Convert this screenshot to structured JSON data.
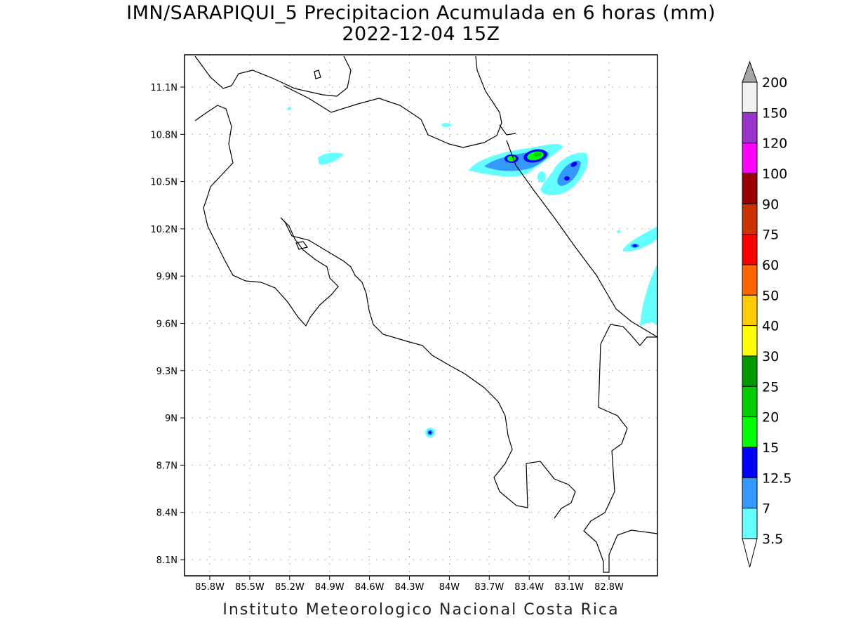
{
  "title": {
    "line1": "IMN/SARAPIQUI_5 Precipitacion Acumulada en 6 horas (mm)",
    "line2": "2022-12-04 15Z"
  },
  "footer": "Instituto Meteorologico Nacional Costa Rica",
  "map": {
    "lon_ticks": [
      "85.8W",
      "85.5W",
      "85.2W",
      "84.9W",
      "84.6W",
      "84.3W",
      "84W",
      "83.7W",
      "83.4W",
      "83.1W",
      "82.8W"
    ],
    "lat_ticks": [
      "11.1N",
      "10.8N",
      "10.5N",
      "10.2N",
      "9.9N",
      "9.6N",
      "9.3N",
      "9N",
      "8.7N",
      "8.4N",
      "8.1N"
    ]
  },
  "colorbar": {
    "labels": [
      "200",
      "150",
      "120",
      "100",
      "90",
      "75",
      "60",
      "50",
      "40",
      "30",
      "25",
      "20",
      "15",
      "12.5",
      "7",
      "3.5"
    ],
    "colors": [
      "#f2f2f2",
      "#9933cc",
      "#ff00ff",
      "#990000",
      "#cc3300",
      "#ff0000",
      "#ff6600",
      "#ffcc00",
      "#ffff00",
      "#009900",
      "#00cc00",
      "#00ff00",
      "#0000ff",
      "#3399ff",
      "#66ffff"
    ],
    "over_color": "#a6a6a6",
    "under_color": "#ffffff"
  }
}
